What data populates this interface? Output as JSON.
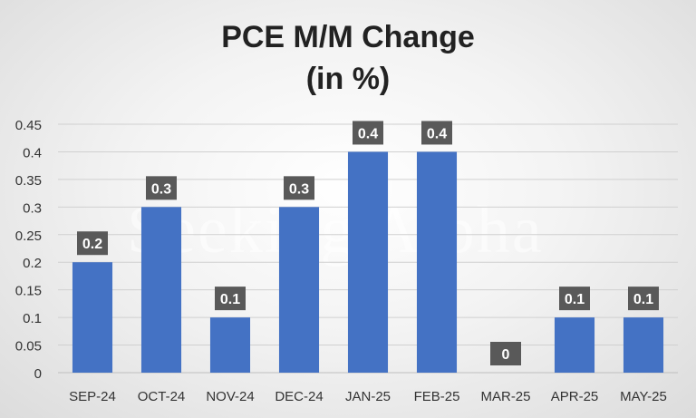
{
  "chart_data": {
    "type": "bar",
    "title": "PCE M/M Change",
    "subtitle": "(in %)",
    "categories": [
      "SEP-24",
      "OCT-24",
      "NOV-24",
      "DEC-24",
      "JAN-25",
      "FEB-25",
      "MAR-25",
      "APR-25",
      "MAY-25"
    ],
    "values": [
      0.2,
      0.3,
      0.1,
      0.3,
      0.4,
      0.4,
      0,
      0.1,
      0.1
    ],
    "data_labels": [
      "0.2",
      "0.3",
      "0.1",
      "0.3",
      "0.4",
      "0.4",
      "0",
      "0.1",
      "0.1"
    ],
    "y_ticks": [
      "0",
      "0.05",
      "0.1",
      "0.15",
      "0.2",
      "0.25",
      "0.3",
      "0.35",
      "0.4",
      "0.45"
    ],
    "ylim": [
      0,
      0.45
    ],
    "xlabel": "",
    "ylabel": "",
    "grid": true,
    "legend": "none",
    "bar_color": "#4472C4",
    "label_bg_color": "#595959",
    "watermark": "Seeking Alpha"
  }
}
